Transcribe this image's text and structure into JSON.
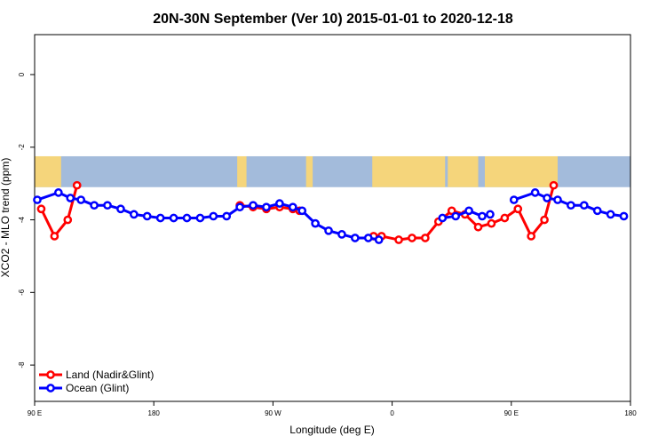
{
  "chart_data": {
    "type": "line",
    "title": "20N-30N September (Ver 10)   2015-01-01 to 2020-12-18",
    "xlabel": "Longitude (deg E)",
    "ylabel": "XCO2 - MLO trend (ppm)",
    "xlim": [
      90,
      540
    ],
    "ylim": [
      -9,
      1.1
    ],
    "x_ticks": [
      {
        "value": 90,
        "label": "90 E"
      },
      {
        "value": 180,
        "label": "180"
      },
      {
        "value": 270,
        "label": "90 W"
      },
      {
        "value": 360,
        "label": "0"
      },
      {
        "value": 450,
        "label": "90 E"
      },
      {
        "value": 540,
        "label": "180"
      }
    ],
    "y_ticks": [
      {
        "value": 0,
        "label": "0"
      },
      {
        "value": -2,
        "label": "-2"
      },
      {
        "value": -4,
        "label": "-4"
      },
      {
        "value": -6,
        "label": "-6"
      },
      {
        "value": -8,
        "label": "-8"
      }
    ],
    "background_map": {
      "y_range": [
        -3.1,
        -2.25
      ],
      "land_color": "#F5D57B",
      "ocean_color": "#A3BBDB"
    },
    "legend_position": "bottom-left",
    "series": [
      {
        "name": "Land (Nadir&Glint)",
        "color": "#FF0000",
        "segments": [
          [
            [
              95,
              -3.7
            ],
            [
              105,
              -4.45
            ],
            [
              115,
              -4.0
            ],
            [
              122,
              -3.05
            ]
          ],
          [
            [
              245,
              -3.6
            ],
            [
              255,
              -3.65
            ],
            [
              265,
              -3.7
            ],
            [
              275,
              -3.65
            ],
            [
              285,
              -3.7
            ],
            [
              290,
              -3.75
            ]
          ],
          [
            [
              346,
              -4.45
            ],
            [
              352,
              -4.45
            ],
            [
              365,
              -4.55
            ],
            [
              375,
              -4.5
            ],
            [
              385,
              -4.5
            ],
            [
              395,
              -4.05
            ],
            [
              405,
              -3.75
            ],
            [
              415,
              -3.85
            ],
            [
              425,
              -4.2
            ],
            [
              435,
              -4.1
            ],
            [
              445,
              -3.95
            ],
            [
              455,
              -3.7
            ],
            [
              465,
              -4.45
            ],
            [
              475,
              -4.0
            ],
            [
              482,
              -3.05
            ]
          ]
        ]
      },
      {
        "name": "Ocean (Glint)",
        "color": "#0000FF",
        "segments": [
          [
            [
              92,
              -3.45
            ],
            [
              108,
              -3.25
            ],
            [
              117,
              -3.4
            ],
            [
              125,
              -3.45
            ],
            [
              135,
              -3.6
            ],
            [
              145,
              -3.6
            ],
            [
              155,
              -3.7
            ],
            [
              165,
              -3.85
            ],
            [
              175,
              -3.9
            ],
            [
              185,
              -3.95
            ],
            [
              195,
              -3.95
            ],
            [
              205,
              -3.95
            ],
            [
              215,
              -3.95
            ],
            [
              225,
              -3.9
            ],
            [
              235,
              -3.9
            ],
            [
              245,
              -3.65
            ],
            [
              255,
              -3.6
            ],
            [
              265,
              -3.65
            ],
            [
              275,
              -3.55
            ],
            [
              285,
              -3.65
            ],
            [
              292,
              -3.75
            ],
            [
              302,
              -4.1
            ],
            [
              312,
              -4.3
            ],
            [
              322,
              -4.4
            ],
            [
              332,
              -4.5
            ],
            [
              342,
              -4.5
            ],
            [
              350,
              -4.55
            ]
          ],
          [
            [
              398,
              -3.95
            ],
            [
              408,
              -3.9
            ],
            [
              418,
              -3.75
            ],
            [
              428,
              -3.9
            ],
            [
              434,
              -3.85
            ]
          ],
          [
            [
              452,
              -3.45
            ],
            [
              468,
              -3.25
            ],
            [
              477,
              -3.4
            ],
            [
              485,
              -3.45
            ],
            [
              495,
              -3.6
            ],
            [
              505,
              -3.6
            ],
            [
              515,
              -3.75
            ],
            [
              525,
              -3.85
            ],
            [
              535,
              -3.9
            ]
          ]
        ]
      }
    ]
  }
}
